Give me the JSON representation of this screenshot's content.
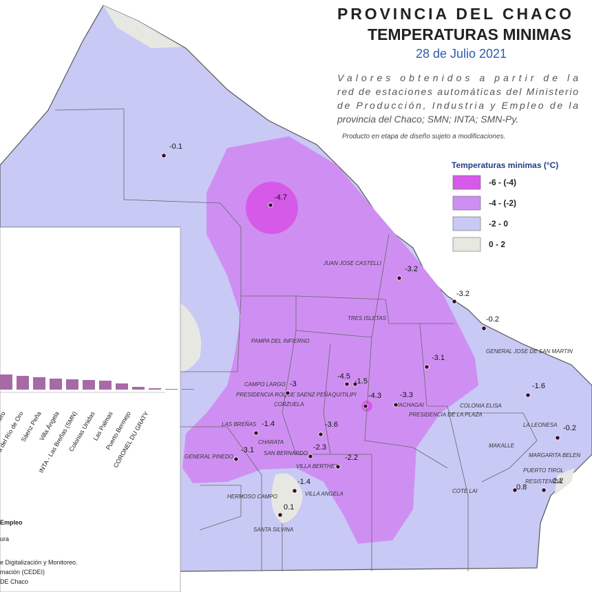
{
  "header": {
    "title_line1": "PROVINCIA DEL CHACO",
    "title_line2": "TEMPERATURAS MINIMAS",
    "date": "28 de Julio 2021",
    "description": [
      "Valores obtenidos a partir de la",
      "red de estaciones automáticas del Ministerio",
      "de Producción, Industria y Empleo de la",
      "provincia del Chaco; SMN; INTA; SMN-Py."
    ],
    "note": "Producto en etapa de diseño sujeto a modificaciones."
  },
  "legend": {
    "title": "Temperaturas minimas (°C)",
    "items": [
      {
        "label": "-6 - (-4)",
        "color": "#d65ae8"
      },
      {
        "label": "-4 - (-2)",
        "color": "#cf8ff2"
      },
      {
        "label": "-2 - 0",
        "color": "#c9c9f6"
      },
      {
        "label": "0 - 2",
        "color": "#e8e8e2"
      }
    ]
  },
  "stations": [
    "-0.1",
    "-4.7",
    "-3.2",
    "-3.2",
    "-0.2",
    "-3.1",
    "-4.5",
    "-1.5",
    "-3",
    "-4.3",
    "-3.3",
    "-1.6",
    "-0.2",
    "-1.4",
    "-3.6",
    "-3.1",
    "-2.3",
    "-2.2",
    "-1.4",
    "0.1",
    "0.8",
    "2.2"
  ],
  "places": [
    "JUAN JOSE CASTELLI",
    "TRES ISLETAS",
    "PAMPA DEL INFIERNO",
    "GENERAL JOSE DE SAN MARTIN",
    "CAMPO LARGO",
    "PRESIDENCIA ROQUE SAENZ PEÑA",
    "QUITILIPI",
    "MACHAGAI",
    "CORZUELA",
    "COLONIA ELISA",
    "PRESIDENCIA DE LA PLAZA",
    "LA LEONESA",
    "LAS BREÑAS",
    "CHARATA",
    "MAKALLE",
    "MARGARITA BELEN",
    "GENERAL PINEDO",
    "SAN BERNARDO",
    "VILLA BERTHET",
    "PUERTO TIROL",
    "COTE LAI",
    "RESISTENCIA",
    "HERMOSO CAMPO",
    "VILLA ANGELA",
    "SANTA SILVINA"
  ],
  "inset": {
    "bar_labels": [
      "Resistencia Aero",
      "Selva del Río de Oro",
      "Sáenz Peña",
      "Villa Ángela",
      "INTA - Las Breñas (SMN)",
      "Colonias Unidas",
      "Las Palmas",
      "Puerto Bermejo",
      "CORONEL DU GRATY"
    ],
    "texts": [
      "Empleo",
      "ura",
      "e Digitalización y Monitoreo.",
      "mación (CEDEI)",
      "DE Chaco"
    ]
  }
}
